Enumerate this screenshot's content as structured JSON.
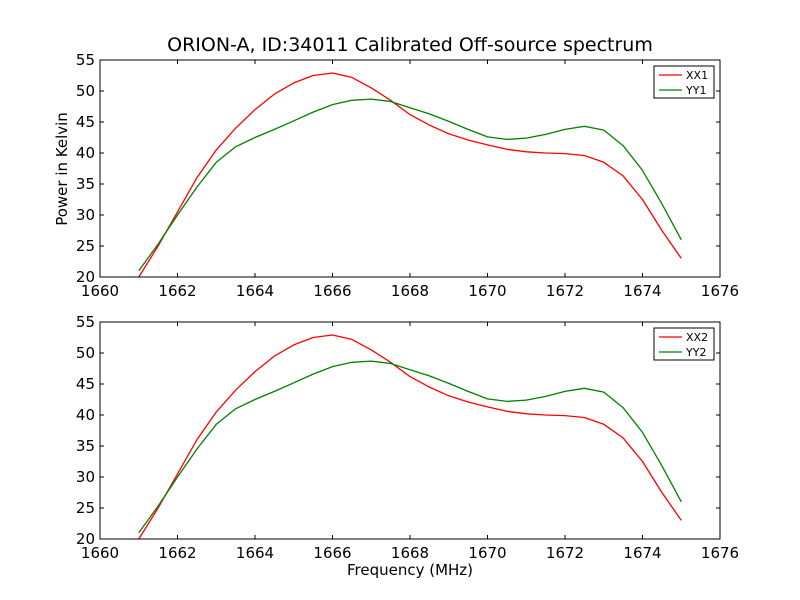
{
  "title": "ORION-A, ID:34011 Calibrated Off-source spectrum",
  "colors": {
    "XX": "#ff0000",
    "YY": "#008000"
  },
  "chart_data": [
    {
      "type": "line",
      "title": "ORION-A, ID:34011 Calibrated Off-source spectrum",
      "xlabel": "",
      "ylabel": "Power in Kelvin",
      "xlim": [
        1660,
        1676
      ],
      "ylim": [
        20,
        55
      ],
      "xticks": [
        1660,
        1662,
        1664,
        1666,
        1668,
        1670,
        1672,
        1674,
        1676
      ],
      "yticks": [
        20,
        25,
        30,
        35,
        40,
        45,
        50,
        55
      ],
      "legend": "top-right",
      "grid": false,
      "series": [
        {
          "name": "XX1",
          "color": "#ff0000",
          "x": [
            1661,
            1661.5,
            1662,
            1662.5,
            1663,
            1663.5,
            1664,
            1664.5,
            1665,
            1665.5,
            1666,
            1666.5,
            1667,
            1667.5,
            1668,
            1668.5,
            1669,
            1669.5,
            1670,
            1670.5,
            1671,
            1671.5,
            1672,
            1672.5,
            1673,
            1673.5,
            1674,
            1674.5,
            1675
          ],
          "y": [
            20,
            25,
            30.5,
            36,
            40.5,
            44,
            47,
            49.5,
            51.3,
            52.5,
            52.9,
            52.2,
            50.5,
            48.5,
            46.2,
            44.5,
            43.1,
            42.1,
            41.3,
            40.6,
            40.2,
            40,
            39.9,
            39.6,
            38.5,
            36.3,
            32.5,
            27.5,
            23
          ]
        },
        {
          "name": "YY1",
          "color": "#008000",
          "x": [
            1661,
            1661.5,
            1662,
            1662.5,
            1663,
            1663.5,
            1664,
            1664.5,
            1665,
            1665.5,
            1666,
            1666.5,
            1667,
            1667.5,
            1668,
            1668.5,
            1669,
            1669.5,
            1670,
            1670.5,
            1671,
            1671.5,
            1672,
            1672.5,
            1673,
            1673.5,
            1674,
            1674.5,
            1675
          ],
          "y": [
            21,
            25.3,
            30,
            34.5,
            38.5,
            41,
            42.5,
            43.8,
            45.2,
            46.6,
            47.8,
            48.5,
            48.7,
            48.3,
            47.3,
            46.3,
            45.1,
            43.8,
            42.6,
            42.2,
            42.4,
            43,
            43.8,
            44.3,
            43.7,
            41.2,
            37.2,
            31.8,
            26
          ]
        }
      ]
    },
    {
      "type": "line",
      "title": "",
      "xlabel": "Frequency (MHz)",
      "ylabel": "",
      "xlim": [
        1660,
        1676
      ],
      "ylim": [
        20,
        55
      ],
      "xticks": [
        1660,
        1662,
        1664,
        1666,
        1668,
        1670,
        1672,
        1674,
        1676
      ],
      "yticks": [
        20,
        25,
        30,
        35,
        40,
        45,
        50,
        55
      ],
      "legend": "top-right",
      "grid": false,
      "series": [
        {
          "name": "XX2",
          "color": "#ff0000",
          "x": [
            1661,
            1661.5,
            1662,
            1662.5,
            1663,
            1663.5,
            1664,
            1664.5,
            1665,
            1665.5,
            1666,
            1666.5,
            1667,
            1667.5,
            1668,
            1668.5,
            1669,
            1669.5,
            1670,
            1670.5,
            1671,
            1671.5,
            1672,
            1672.5,
            1673,
            1673.5,
            1674,
            1674.5,
            1675
          ],
          "y": [
            20,
            25,
            30.5,
            36,
            40.5,
            44,
            47,
            49.5,
            51.3,
            52.5,
            52.9,
            52.2,
            50.5,
            48.5,
            46.2,
            44.5,
            43.1,
            42.1,
            41.3,
            40.6,
            40.2,
            40,
            39.9,
            39.6,
            38.5,
            36.3,
            32.5,
            27.5,
            23
          ]
        },
        {
          "name": "YY2",
          "color": "#008000",
          "x": [
            1661,
            1661.5,
            1662,
            1662.5,
            1663,
            1663.5,
            1664,
            1664.5,
            1665,
            1665.5,
            1666,
            1666.5,
            1667,
            1667.5,
            1668,
            1668.5,
            1669,
            1669.5,
            1670,
            1670.5,
            1671,
            1671.5,
            1672,
            1672.5,
            1673,
            1673.5,
            1674,
            1674.5,
            1675
          ],
          "y": [
            21,
            25.3,
            30,
            34.5,
            38.5,
            41,
            42.5,
            43.8,
            45.2,
            46.6,
            47.8,
            48.5,
            48.7,
            48.3,
            47.3,
            46.3,
            45.1,
            43.8,
            42.6,
            42.2,
            42.4,
            43,
            43.8,
            44.3,
            43.7,
            41.2,
            37.2,
            31.8,
            26
          ]
        }
      ]
    }
  ]
}
